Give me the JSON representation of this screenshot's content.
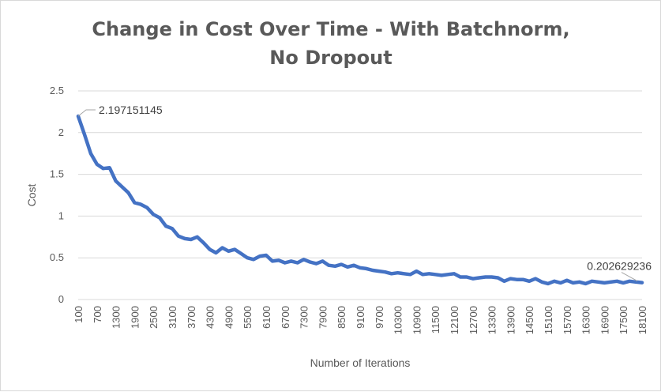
{
  "chart_data": {
    "type": "line",
    "title": "Change in Cost Over Time - With Batchnorm, No Dropout",
    "xlabel": "Number of Iterations",
    "ylabel": "Cost",
    "ylim": [
      0,
      2.5
    ],
    "yticks": [
      "0",
      "0.5",
      "1",
      "1.5",
      "2",
      "2.5"
    ],
    "xlim": [
      100,
      18100
    ],
    "xticks": [
      "100",
      "700",
      "1300",
      "1900",
      "2500",
      "3100",
      "3700",
      "4300",
      "4900",
      "5500",
      "6100",
      "6700",
      "7300",
      "7900",
      "8500",
      "9100",
      "9700",
      "10300",
      "10900",
      "11500",
      "12100",
      "12700",
      "13300",
      "13900",
      "14500",
      "15100",
      "15700",
      "16300",
      "16900",
      "17500",
      "18100"
    ],
    "grid": "horizontal",
    "legend": "none",
    "series_color": "#4472c4",
    "annotations": [
      {
        "x": 100,
        "y": 2.197151145,
        "text": "2.197151145"
      },
      {
        "x": 18100,
        "y": 0.202629236,
        "text": "0.202629236"
      }
    ],
    "series": [
      {
        "x": [
          100,
          300,
          500,
          700,
          900,
          1100,
          1300,
          1500,
          1700,
          1900,
          2100,
          2300,
          2500,
          2700,
          2900,
          3100,
          3300,
          3500,
          3700,
          3900,
          4100,
          4300,
          4500,
          4700,
          4900,
          5100,
          5300,
          5500,
          5700,
          5900,
          6100,
          6300,
          6500,
          6700,
          6900,
          7100,
          7300,
          7500,
          7700,
          7900,
          8100,
          8300,
          8500,
          8700,
          8900,
          9100,
          9300,
          9500,
          9700,
          9900,
          10100,
          10300,
          10500,
          10700,
          10900,
          11100,
          11300,
          11500,
          11700,
          11900,
          12100,
          12300,
          12500,
          12700,
          12900,
          13100,
          13300,
          13500,
          13700,
          13900,
          14100,
          14300,
          14500,
          14700,
          14900,
          15100,
          15300,
          15500,
          15700,
          15900,
          16100,
          16300,
          16500,
          16700,
          16900,
          17100,
          17300,
          17500,
          17700,
          17900,
          18100
        ],
        "values": [
          2.197151145,
          1.98,
          1.75,
          1.62,
          1.57,
          1.58,
          1.42,
          1.35,
          1.28,
          1.16,
          1.14,
          1.1,
          1.02,
          0.98,
          0.88,
          0.85,
          0.76,
          0.73,
          0.72,
          0.75,
          0.68,
          0.6,
          0.56,
          0.62,
          0.58,
          0.6,
          0.55,
          0.5,
          0.48,
          0.52,
          0.53,
          0.46,
          0.47,
          0.44,
          0.46,
          0.44,
          0.48,
          0.45,
          0.43,
          0.46,
          0.41,
          0.4,
          0.42,
          0.39,
          0.41,
          0.38,
          0.37,
          0.35,
          0.34,
          0.33,
          0.31,
          0.32,
          0.31,
          0.3,
          0.34,
          0.3,
          0.31,
          0.3,
          0.29,
          0.3,
          0.31,
          0.27,
          0.27,
          0.25,
          0.26,
          0.27,
          0.27,
          0.26,
          0.22,
          0.25,
          0.24,
          0.24,
          0.22,
          0.25,
          0.21,
          0.19,
          0.22,
          0.2,
          0.23,
          0.2,
          0.21,
          0.19,
          0.22,
          0.21,
          0.2,
          0.21,
          0.22,
          0.2,
          0.22,
          0.21,
          0.202629236
        ]
      }
    ]
  }
}
